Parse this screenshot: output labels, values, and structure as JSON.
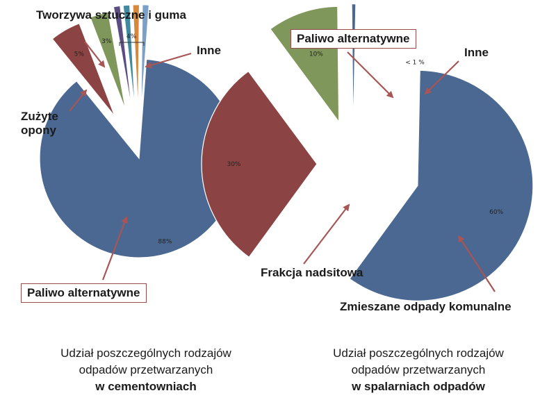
{
  "chart_data": [
    {
      "type": "pie",
      "slices": [
        {
          "value": 88,
          "label": "Paliwo alternatywne",
          "data_label": "88%",
          "color": "#4a6891"
        },
        {
          "value": 5,
          "label": "Zużyte opony",
          "data_label": "5%",
          "color": "#8b4344"
        },
        {
          "value": 3,
          "label": "Tworzywa sztuczne i guma",
          "data_label": "3%",
          "color": "#7f975a"
        },
        {
          "value": 1,
          "label": "",
          "data_label": "",
          "color": "#5b4d82"
        },
        {
          "value": 1,
          "label": "",
          "data_label": "",
          "color": "#3f8aa0"
        },
        {
          "value": 1,
          "label": "",
          "data_label": "",
          "color": "#d6893c"
        },
        {
          "value": 1,
          "label": "",
          "data_label": "",
          "color": "#7ca1c9"
        }
      ],
      "group_label": "4%",
      "annotations": [
        "Tworzywa sztuczne i guma",
        "Zużyte opony",
        "Inne",
        "Paliwo alternatywne"
      ],
      "caption_lines": [
        "Udział poszczególnych rodzajów",
        "odpadów przetwarzanych",
        "w cementowniach"
      ]
    },
    {
      "type": "pie",
      "slices": [
        {
          "value": 60,
          "label": "Zmieszane odpady komunalne",
          "data_label": "60%",
          "color": "#4a6891"
        },
        {
          "value": 30,
          "label": "Frakcja nadsitowa",
          "data_label": "30%",
          "color": "#8b4344"
        },
        {
          "value": 10,
          "label": "Paliwo alternatywne",
          "data_label": "10%",
          "color": "#7f975a"
        },
        {
          "value": 0.5,
          "label": "Inne",
          "data_label": "< 1 %",
          "color": "#4a6891"
        }
      ],
      "annotations": [
        "Paliwo alternatywne",
        "Inne",
        "Frakcja nadsitowa",
        "Zmieszane odpady komunalne"
      ],
      "caption_lines": [
        "Udział poszczególnych rodzajów",
        "odpadów przetwarzanych",
        "w spalarniach odpadów"
      ]
    }
  ],
  "colors": {
    "arrow": "#a75555",
    "box_border": "#9a4a4a"
  }
}
